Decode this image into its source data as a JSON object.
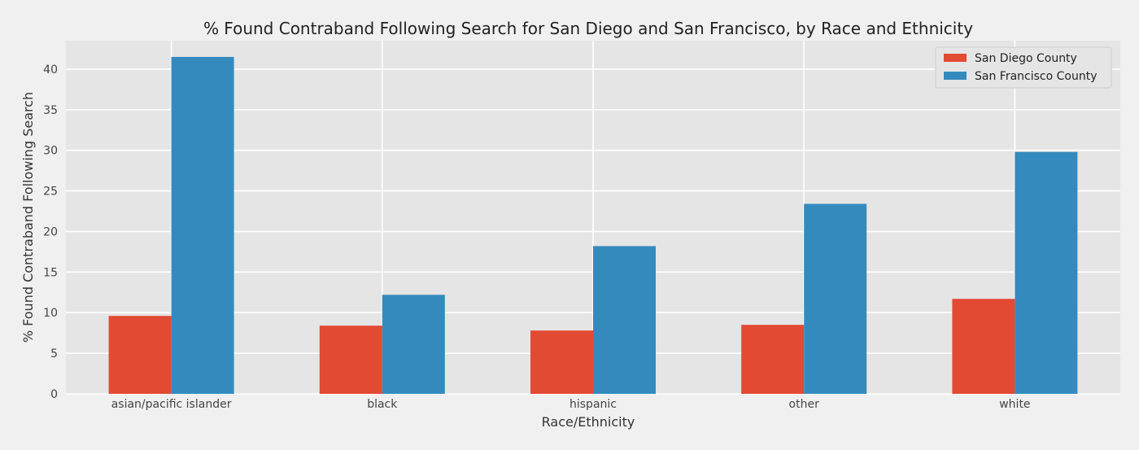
{
  "chart_data": {
    "type": "bar",
    "title": "% Found Contraband Following Search for San Diego and San Francisco, by Race and Ethnicity",
    "xlabel": "Race/Ethnicity",
    "ylabel": "% Found Contraband Following Search",
    "categories": [
      "asian/pacific islander",
      "black",
      "hispanic",
      "other",
      "white"
    ],
    "series": [
      {
        "name": "San Diego County",
        "color": "#E24A33",
        "values": [
          9.6,
          8.4,
          7.8,
          8.5,
          11.7
        ]
      },
      {
        "name": "San Francisco County",
        "color": "#348ABD",
        "values": [
          41.5,
          12.2,
          18.2,
          23.4,
          29.8
        ]
      }
    ],
    "ylim": [
      0,
      43.5
    ],
    "yticks": [
      0,
      5,
      10,
      15,
      20,
      25,
      30,
      35,
      40
    ],
    "grid": true,
    "legend_position": "top-right",
    "plot_background": "#E5E5E5",
    "grid_color": "#FFFFFF"
  }
}
